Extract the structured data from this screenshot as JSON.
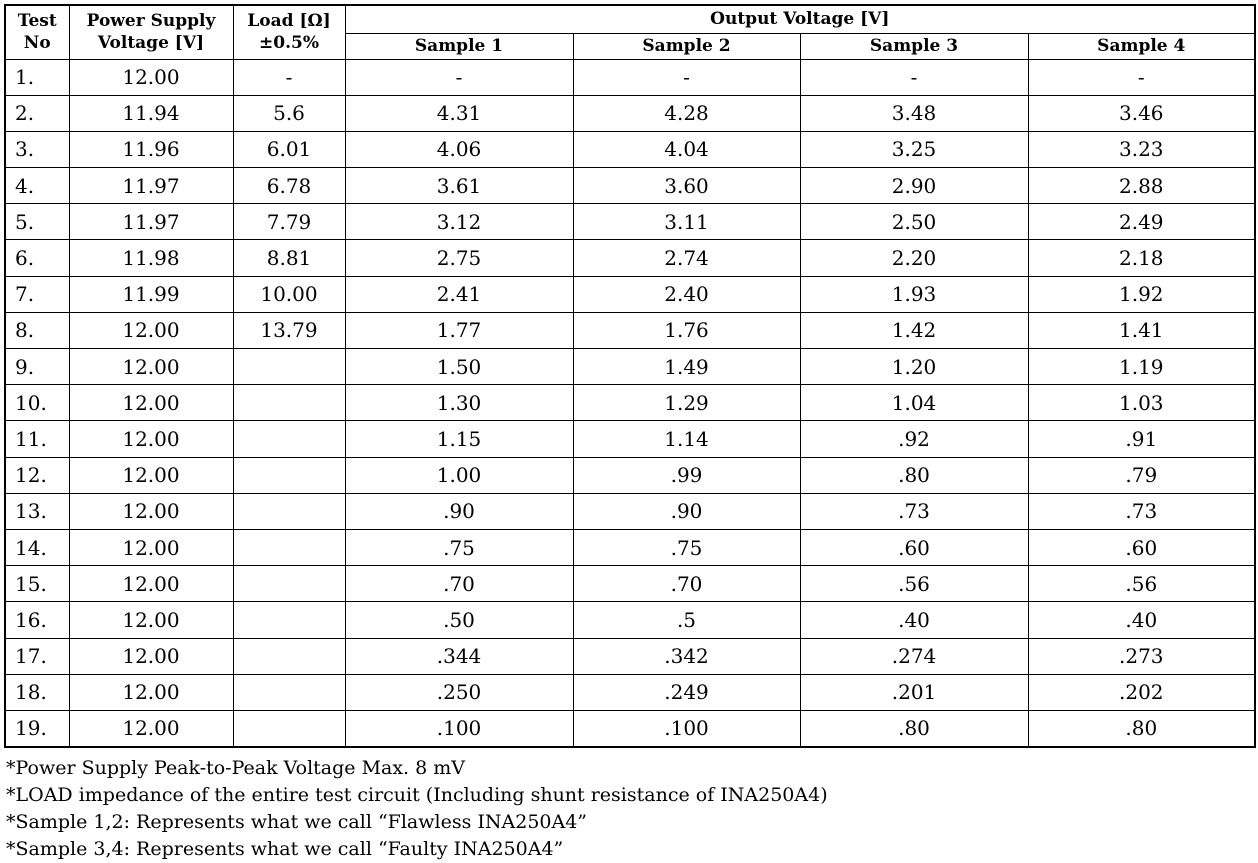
{
  "table": {
    "header": {
      "test_no": "Test\nNo",
      "power_supply": "Power Supply\nVoltage [V]",
      "load": "Load [Ω]\n±0.5%",
      "output_voltage": "Output Voltage [V]",
      "samples": [
        "Sample 1",
        "Sample 2",
        "Sample 3",
        "Sample 4"
      ]
    },
    "rows": [
      {
        "no": "1.",
        "psv": "12.00",
        "load": "-",
        "s1": "-",
        "s2": "-",
        "s3": "-",
        "s4": "-"
      },
      {
        "no": "2.",
        "psv": "11.94",
        "load": "5.6",
        "s1": "4.31",
        "s2": "4.28",
        "s3": "3.48",
        "s4": "3.46"
      },
      {
        "no": "3.",
        "psv": "11.96",
        "load": "6.01",
        "s1": "4.06",
        "s2": "4.04",
        "s3": "3.25",
        "s4": "3.23"
      },
      {
        "no": "4.",
        "psv": "11.97",
        "load": "6.78",
        "s1": "3.61",
        "s2": "3.60",
        "s3": "2.90",
        "s4": "2.88"
      },
      {
        "no": "5.",
        "psv": "11.97",
        "load": "7.79",
        "s1": "3.12",
        "s2": "3.11",
        "s3": "2.50",
        "s4": "2.49"
      },
      {
        "no": "6.",
        "psv": "11.98",
        "load": "8.81",
        "s1": "2.75",
        "s2": "2.74",
        "s3": "2.20",
        "s4": "2.18"
      },
      {
        "no": "7.",
        "psv": "11.99",
        "load": "10.00",
        "s1": "2.41",
        "s2": "2.40",
        "s3": "1.93",
        "s4": "1.92"
      },
      {
        "no": "8.",
        "psv": "12.00",
        "load": "13.79",
        "s1": "1.77",
        "s2": "1.76",
        "s3": "1.42",
        "s4": "1.41"
      },
      {
        "no": "9.",
        "psv": "12.00",
        "load": "",
        "s1": "1.50",
        "s2": "1.49",
        "s3": "1.20",
        "s4": "1.19"
      },
      {
        "no": "10.",
        "psv": "12.00",
        "load": "",
        "s1": "1.30",
        "s2": "1.29",
        "s3": "1.04",
        "s4": "1.03"
      },
      {
        "no": "11.",
        "psv": "12.00",
        "load": "",
        "s1": "1.15",
        "s2": "1.14",
        "s3": ".92",
        "s4": ".91"
      },
      {
        "no": "12.",
        "psv": "12.00",
        "load": "",
        "s1": "1.00",
        "s2": ".99",
        "s3": ".80",
        "s4": ".79"
      },
      {
        "no": "13.",
        "psv": "12.00",
        "load": "",
        "s1": ".90",
        "s2": ".90",
        "s3": ".73",
        "s4": ".73"
      },
      {
        "no": "14.",
        "psv": "12.00",
        "load": "",
        "s1": ".75",
        "s2": ".75",
        "s3": ".60",
        "s4": ".60"
      },
      {
        "no": "15.",
        "psv": "12.00",
        "load": "",
        "s1": ".70",
        "s2": ".70",
        "s3": ".56",
        "s4": ".56"
      },
      {
        "no": "16.",
        "psv": "12.00",
        "load": "",
        "s1": ".50",
        "s2": ".5",
        "s3": ".40",
        "s4": ".40"
      },
      {
        "no": "17.",
        "psv": "12.00",
        "load": "",
        "s1": ".344",
        "s2": ".342",
        "s3": ".274",
        "s4": ".273"
      },
      {
        "no": "18.",
        "psv": "12.00",
        "load": "",
        "s1": ".250",
        "s2": ".249",
        "s3": ".201",
        "s4": ".202"
      },
      {
        "no": "19.",
        "psv": "12.00",
        "load": "",
        "s1": ".100",
        "s2": ".100",
        "s3": ".80",
        "s4": ".80"
      }
    ]
  },
  "footnotes": [
    "*Power Supply Peak-to-Peak Voltage Max. 8 mV",
    "*LOAD impedance of the entire test circuit (Including shunt resistance of INA250A4)",
    "*Sample 1,2: Represents what we call “Flawless INA250A4”",
    "*Sample 3,4: Represents what we call “Faulty INA250A4”"
  ]
}
